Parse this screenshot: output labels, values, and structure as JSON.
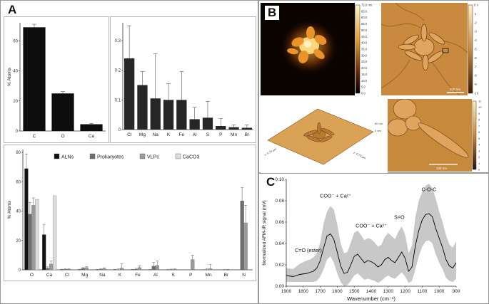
{
  "panel_labels": {
    "a": "A",
    "b": "B",
    "c": "C"
  },
  "chart_data": [
    {
      "id": "A-top-left",
      "type": "bar",
      "categories": [
        "C",
        "O",
        "Ca"
      ],
      "values": [
        69,
        25,
        4.5
      ],
      "errors": [
        2,
        1.2,
        0.6
      ],
      "ylabel": "% Atoms",
      "ylim": [
        0,
        72
      ],
      "yticks": [
        0,
        20,
        40,
        60
      ],
      "color": "#0d0d0d"
    },
    {
      "id": "A-top-right",
      "type": "bar",
      "categories": [
        "Cl",
        "Mg",
        "Na",
        "K",
        "Fe",
        "Al",
        "S",
        "P",
        "Mn",
        "Br"
      ],
      "values": [
        0.24,
        0.15,
        0.105,
        0.1,
        0.1,
        0.035,
        0.04,
        0.012,
        0.008,
        0.006
      ],
      "errors": [
        0.11,
        0.045,
        0.15,
        0.055,
        0.095,
        0.04,
        0.055,
        0.025,
        0.008,
        0.01
      ],
      "ylabel": "",
      "ylim": [
        0,
        0.36
      ],
      "yticks": [
        0.0,
        0.1,
        0.2,
        0.3
      ],
      "color": "#262626"
    },
    {
      "id": "A-bottom",
      "type": "bar",
      "categories": [
        "O",
        "Ca",
        "Cl",
        "Mg",
        "Na",
        "K",
        "Fe",
        "Al",
        "S",
        "P",
        "Mn",
        "Br",
        "N"
      ],
      "series": [
        {
          "name": "ALNs",
          "color": "#111111",
          "values": [
            69,
            24,
            0.2,
            0.15,
            0.1,
            0.1,
            0.1,
            0.05,
            0.05,
            0.01,
            0.01,
            0.01,
            0
          ],
          "errors": [
            10,
            7,
            0.2,
            0.2,
            0.2,
            0.2,
            0.2,
            0.2,
            0.2,
            0.1,
            0.1,
            0.1,
            0
          ]
        },
        {
          "name": "Prokaryotes",
          "color": "#6e6e6e",
          "values": [
            38,
            1,
            0.3,
            1,
            0.3,
            0.2,
            0.4,
            2.5,
            0.2,
            0,
            0.2,
            0.1,
            47
          ],
          "errors": [
            8,
            1,
            0.3,
            0.5,
            0.4,
            0.4,
            0.6,
            2.5,
            0.3,
            0,
            0.4,
            0.1,
            9
          ]
        },
        {
          "name": "VLPs",
          "color": "#9a9a9a",
          "values": [
            44,
            4,
            0.4,
            1.5,
            0.8,
            1.2,
            1.5,
            3,
            0.3,
            7,
            0.8,
            0.2,
            32
          ],
          "errors": [
            5,
            2,
            0.3,
            0.6,
            0.6,
            2.8,
            1.2,
            3,
            0.3,
            3,
            2.7,
            0.1,
            12
          ]
        },
        {
          "name": "CaCO3",
          "color": "#dcdcdc",
          "values": [
            48,
            50.5,
            0,
            0,
            0,
            0,
            0,
            0,
            0,
            0,
            0,
            0,
            0
          ],
          "errors": [
            0,
            0,
            0,
            0,
            0,
            0,
            0,
            0,
            0,
            0,
            0,
            0,
            0
          ]
        }
      ],
      "ylabel": "% Atoms",
      "ylim": [
        0,
        82
      ],
      "yticks": [
        0,
        20,
        40,
        60,
        80
      ],
      "legend": "top-center"
    },
    {
      "id": "C",
      "type": "line",
      "title": "",
      "xlabel": "Wavenumber (cm⁻¹)",
      "ylabel": "Normalized AFM-IR signal (mV)",
      "xlim": [
        1900,
        900
      ],
      "ylim": [
        0,
        0.1
      ],
      "xticks": [
        1900,
        1800,
        1700,
        1600,
        1500,
        1400,
        1300,
        1200,
        1100,
        1000,
        900
      ],
      "yticks": [
        0,
        0.02,
        0.04,
        0.06,
        0.08,
        0.1
      ],
      "x": [
        1900,
        1860,
        1820,
        1780,
        1760,
        1740,
        1720,
        1700,
        1680,
        1660,
        1640,
        1620,
        1600,
        1580,
        1560,
        1540,
        1520,
        1500,
        1480,
        1460,
        1440,
        1420,
        1400,
        1380,
        1360,
        1340,
        1320,
        1300,
        1280,
        1260,
        1240,
        1220,
        1200,
        1180,
        1160,
        1140,
        1120,
        1100,
        1080,
        1060,
        1040,
        1020,
        1000,
        980,
        960,
        940,
        920,
        900
      ],
      "mean": [
        0.01,
        0.009,
        0.011,
        0.012,
        0.013,
        0.014,
        0.017,
        0.024,
        0.036,
        0.047,
        0.049,
        0.044,
        0.032,
        0.019,
        0.012,
        0.013,
        0.02,
        0.028,
        0.03,
        0.026,
        0.022,
        0.024,
        0.023,
        0.021,
        0.018,
        0.02,
        0.025,
        0.027,
        0.024,
        0.022,
        0.027,
        0.032,
        0.026,
        0.014,
        0.018,
        0.038,
        0.052,
        0.062,
        0.067,
        0.068,
        0.065,
        0.054,
        0.045,
        0.036,
        0.025,
        0.019,
        0.017,
        0.022
      ],
      "upper": [
        0.017,
        0.016,
        0.021,
        0.024,
        0.025,
        0.027,
        0.031,
        0.041,
        0.059,
        0.07,
        0.075,
        0.072,
        0.058,
        0.04,
        0.031,
        0.032,
        0.041,
        0.05,
        0.052,
        0.048,
        0.043,
        0.045,
        0.044,
        0.041,
        0.037,
        0.039,
        0.046,
        0.05,
        0.047,
        0.044,
        0.051,
        0.056,
        0.048,
        0.031,
        0.038,
        0.065,
        0.08,
        0.088,
        0.094,
        0.096,
        0.092,
        0.082,
        0.07,
        0.06,
        0.048,
        0.039,
        0.036,
        0.042
      ],
      "lower": [
        0.004,
        0.004,
        0.004,
        0.004,
        0.004,
        0.004,
        0.005,
        0.009,
        0.016,
        0.025,
        0.028,
        0.022,
        0.012,
        0.004,
        0.0,
        0.001,
        0.005,
        0.01,
        0.012,
        0.009,
        0.006,
        0.007,
        0.006,
        0.005,
        0.003,
        0.005,
        0.008,
        0.01,
        0.008,
        0.007,
        0.01,
        0.013,
        0.009,
        0.003,
        0.005,
        0.016,
        0.028,
        0.037,
        0.042,
        0.043,
        0.04,
        0.03,
        0.022,
        0.016,
        0.008,
        0.005,
        0.004,
        0.007
      ],
      "line_color": "#000000",
      "band_color": "#c8c8c8",
      "annotations": [
        {
          "text": "COO⁻ + Ca²⁺",
          "x": 1610,
          "y": 0.083
        },
        {
          "text": "COO⁻ + Ca²⁺",
          "x": 1400,
          "y": 0.055
        },
        {
          "text": "S=O",
          "x": 1235,
          "y": 0.063
        },
        {
          "text": "C-O-C",
          "x": 1060,
          "y": 0.089
        },
        {
          "text": "C=O (ester)",
          "x": 1770,
          "y": 0.032
        }
      ]
    }
  ],
  "afm": {
    "scale1": [
      "72.0 nm",
      "65.0",
      "60.0",
      "55.0",
      "50.0",
      "45.0",
      "40.0",
      "35.0",
      "30.0",
      "25.0",
      "20.0",
      "15.0",
      "10.0",
      "5.0",
      "0.0"
    ],
    "scale2": [
      "0 V",
      "-1",
      "-2",
      "-3",
      "-4",
      "-5",
      "-6",
      "-7",
      "-8",
      "-9",
      "-10"
    ],
    "scale3": [
      "11",
      "10",
      "9",
      "8",
      "7",
      "6",
      "5",
      "4",
      "3",
      "2",
      "1",
      "0"
    ],
    "scalebar2": "200 nm",
    "scalebar4": "100 nm",
    "z3d_top": "60 nm",
    "z3d_bottom": "0 nm",
    "x3d": "x: 0.70 µm",
    "y3d": "y: 0.70 µm"
  }
}
